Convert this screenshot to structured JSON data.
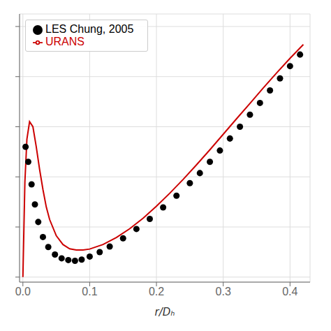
{
  "chart_data": {
    "type": "line",
    "title": "",
    "xlabel": "r/Dₕ",
    "xlim": [
      -0.005,
      0.43
    ],
    "ylim": [
      -0.02,
      1.05
    ],
    "xticks": [
      {
        "value": 0,
        "label": "0.0"
      },
      0.1,
      0.2,
      0.3,
      0.4
    ],
    "yticks": [
      0,
      0.2,
      0.4,
      0.6,
      0.8,
      1.0
    ],
    "grid": true,
    "legend": "upper left",
    "tick_labels": "x",
    "series": [
      {
        "name": "URANS",
        "type": "line",
        "color": "#cc0000",
        "line_style": "solid",
        "x": [
          0.0,
          0.003,
          0.006,
          0.01,
          0.015,
          0.02,
          0.025,
          0.03,
          0.035,
          0.04,
          0.05,
          0.06,
          0.07,
          0.08,
          0.09,
          0.1,
          0.12,
          0.14,
          0.16,
          0.18,
          0.2,
          0.22,
          0.24,
          0.26,
          0.28,
          0.3,
          0.32,
          0.34,
          0.36,
          0.38,
          0.4,
          0.42
        ],
        "values": [
          0.0,
          0.38,
          0.55,
          0.62,
          0.6,
          0.52,
          0.43,
          0.35,
          0.28,
          0.23,
          0.165,
          0.13,
          0.113,
          0.108,
          0.108,
          0.112,
          0.13,
          0.158,
          0.193,
          0.235,
          0.283,
          0.335,
          0.39,
          0.448,
          0.508,
          0.57,
          0.632,
          0.693,
          0.755,
          0.815,
          0.873,
          0.928
        ]
      },
      {
        "name": "LES Chung, 2005",
        "type": "scatter",
        "color": "#000000",
        "marker": "circle",
        "x": [
          0.004,
          0.008,
          0.013,
          0.018,
          0.023,
          0.03,
          0.038,
          0.048,
          0.058,
          0.068,
          0.078,
          0.088,
          0.1,
          0.115,
          0.13,
          0.15,
          0.17,
          0.19,
          0.21,
          0.23,
          0.25,
          0.265,
          0.28,
          0.295,
          0.31,
          0.325,
          0.34,
          0.355,
          0.37,
          0.385,
          0.4,
          0.415
        ],
        "values": [
          0.52,
          0.46,
          0.37,
          0.29,
          0.22,
          0.16,
          0.12,
          0.09,
          0.075,
          0.068,
          0.065,
          0.07,
          0.082,
          0.1,
          0.122,
          0.155,
          0.192,
          0.232,
          0.278,
          0.325,
          0.375,
          0.415,
          0.46,
          0.505,
          0.553,
          0.6,
          0.648,
          0.695,
          0.745,
          0.793,
          0.842,
          0.888
        ]
      }
    ]
  }
}
